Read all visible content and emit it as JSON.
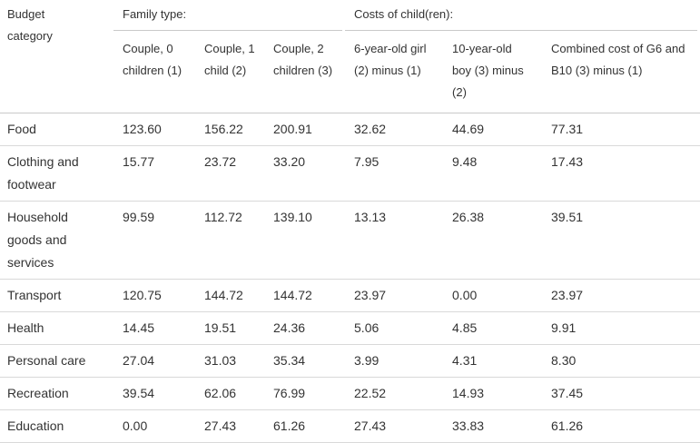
{
  "colors": {
    "text_color": "#333333",
    "header_line": "#c9c9c9",
    "row_line": "#d9d9d9",
    "bg": "#ffffff"
  },
  "table": {
    "corner_header": "Budget category",
    "groups": [
      {
        "label": "Family type:",
        "columns": [
          "Couple, 0 children (1)",
          "Couple, 1 child (2)",
          "Couple, 2 children (3)"
        ]
      },
      {
        "label": "Costs of child(ren):",
        "columns": [
          "6-year-old girl (2) minus (1)",
          "10-year-old boy (3) minus (2)",
          "Combined cost of G6 and B10 (3) minus (1)"
        ]
      }
    ],
    "rows": [
      {
        "category": "Food",
        "values": [
          "123.60",
          "156.22",
          "200.91",
          "32.62",
          "44.69",
          "77.31"
        ]
      },
      {
        "category": "Clothing and footwear",
        "values": [
          "15.77",
          "23.72",
          "33.20",
          "7.95",
          "9.48",
          "17.43"
        ]
      },
      {
        "category": "Household goods and services",
        "values": [
          "99.59",
          "112.72",
          "139.10",
          "13.13",
          "26.38",
          "39.51"
        ]
      },
      {
        "category": "Transport",
        "values": [
          "120.75",
          "144.72",
          "144.72",
          "23.97",
          "0.00",
          "23.97"
        ]
      },
      {
        "category": "Health",
        "values": [
          "14.45",
          "19.51",
          "24.36",
          "5.06",
          "4.85",
          "9.91"
        ]
      },
      {
        "category": "Personal care",
        "values": [
          "27.04",
          "31.03",
          "35.34",
          "3.99",
          "4.31",
          "8.30"
        ]
      },
      {
        "category": "Recreation",
        "values": [
          "39.54",
          "62.06",
          "76.99",
          "22.52",
          "14.93",
          "37.45"
        ]
      },
      {
        "category": "Education",
        "values": [
          "0.00",
          "27.43",
          "61.26",
          "27.43",
          "33.83",
          "61.26"
        ]
      }
    ]
  },
  "chart_data": {
    "type": "table",
    "title": "",
    "column_groups": [
      {
        "label": "Family type:",
        "span": [
          1,
          3
        ]
      },
      {
        "label": "Costs of child(ren):",
        "span": [
          4,
          6
        ]
      }
    ],
    "columns": [
      "Budget category",
      "Couple, 0 children (1)",
      "Couple, 1 child (2)",
      "Couple, 2 children (3)",
      "6-year-old girl (2) minus (1)",
      "10-year-old boy (3) minus (2)",
      "Combined cost of G6 and B10 (3) minus (1)"
    ],
    "rows": [
      [
        "Food",
        123.6,
        156.22,
        200.91,
        32.62,
        44.69,
        77.31
      ],
      [
        "Clothing and footwear",
        15.77,
        23.72,
        33.2,
        7.95,
        9.48,
        17.43
      ],
      [
        "Household goods and services",
        99.59,
        112.72,
        139.1,
        13.13,
        26.38,
        39.51
      ],
      [
        "Transport",
        120.75,
        144.72,
        144.72,
        23.97,
        0.0,
        23.97
      ],
      [
        "Health",
        14.45,
        19.51,
        24.36,
        5.06,
        4.85,
        9.91
      ],
      [
        "Personal care",
        27.04,
        31.03,
        35.34,
        3.99,
        4.31,
        8.3
      ],
      [
        "Recreation",
        39.54,
        62.06,
        76.99,
        22.52,
        14.93,
        37.45
      ],
      [
        "Education",
        0.0,
        27.43,
        61.26,
        27.43,
        33.83,
        61.26
      ]
    ]
  }
}
